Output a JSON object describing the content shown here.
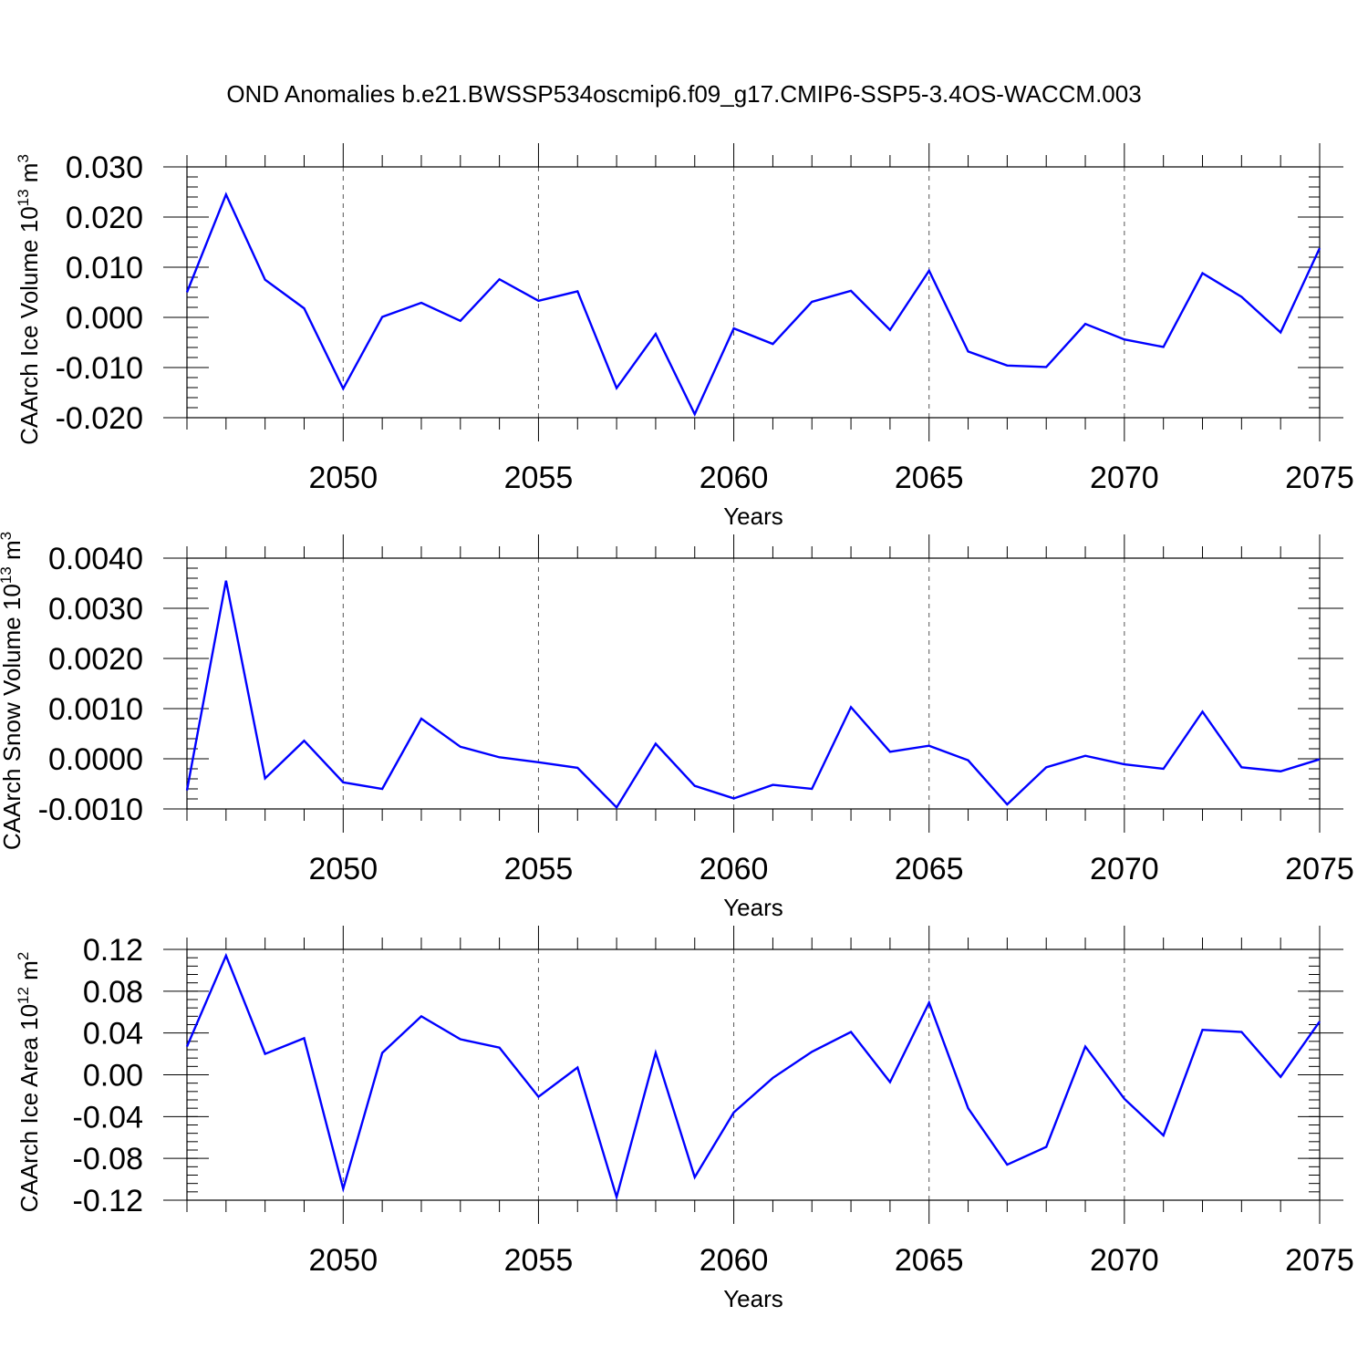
{
  "title": "OND Anomalies b.e21.BWSSP534oscmip6.f09_g17.CMIP6-SSP5-3.4OS-WACCM.003",
  "chart_data": [
    {
      "type": "line",
      "title": "",
      "xlabel": "Years",
      "ylabel": {
        "main": "CAArch Ice Volume 10",
        "exp": "13",
        "unit": " m",
        "unit_exp": "3"
      },
      "xlim": [
        2046,
        2075
      ],
      "ylim": [
        -0.02,
        0.03
      ],
      "x_ticks": [
        2050,
        2055,
        2060,
        2065,
        2070,
        2075
      ],
      "y_ticks": [
        -0.02,
        -0.01,
        0.0,
        0.01,
        0.02,
        0.03
      ],
      "y_tick_labels": [
        "-0.020",
        "-0.010",
        "0.000",
        "0.010",
        "0.020",
        "0.030"
      ],
      "y_minor_step": 0.002,
      "grid": "vertical dashed at major x ticks",
      "color": "#0000ff",
      "x": [
        2046,
        2047,
        2048,
        2049,
        2050,
        2051,
        2052,
        2053,
        2054,
        2055,
        2056,
        2057,
        2058,
        2059,
        2060,
        2061,
        2062,
        2063,
        2064,
        2065,
        2066,
        2067,
        2068,
        2069,
        2070,
        2071,
        2072,
        2073,
        2074,
        2075
      ],
      "values": [
        0.005,
        0.0245,
        0.0075,
        0.0018,
        -0.0142,
        0.0001,
        0.0029,
        -0.0007,
        0.0076,
        0.0033,
        0.0052,
        -0.0141,
        -0.0033,
        -0.0193,
        -0.0022,
        -0.0053,
        0.0031,
        0.0053,
        -0.0025,
        0.0093,
        -0.0068,
        -0.0096,
        -0.0099,
        -0.0013,
        -0.0044,
        -0.0059,
        0.0088,
        0.0041,
        -0.003,
        0.0138
      ]
    },
    {
      "type": "line",
      "title": "",
      "xlabel": "Years",
      "ylabel": {
        "main": "CAArch Snow Volume 10",
        "exp": "13",
        "unit": " m",
        "unit_exp": "3"
      },
      "xlim": [
        2046,
        2075
      ],
      "ylim": [
        -0.001,
        0.004
      ],
      "x_ticks": [
        2050,
        2055,
        2060,
        2065,
        2070,
        2075
      ],
      "y_ticks": [
        -0.001,
        0.0,
        0.001,
        0.002,
        0.003,
        0.004
      ],
      "y_tick_labels": [
        "-0.0010",
        "0.0000",
        "0.0010",
        "0.0020",
        "0.0030",
        "0.0040"
      ],
      "y_minor_step": 0.0002,
      "grid": "vertical dashed at major x ticks",
      "color": "#0000ff",
      "x": [
        2046,
        2047,
        2048,
        2049,
        2050,
        2051,
        2052,
        2053,
        2054,
        2055,
        2056,
        2057,
        2058,
        2059,
        2060,
        2061,
        2062,
        2063,
        2064,
        2065,
        2066,
        2067,
        2068,
        2069,
        2070,
        2071,
        2072,
        2073,
        2074,
        2075
      ],
      "values": [
        -0.00063,
        0.00355,
        -0.00039,
        0.00036,
        -0.00047,
        -0.0006,
        0.0008,
        0.00024,
        3e-05,
        -7e-05,
        -0.00018,
        -0.00097,
        0.0003,
        -0.00054,
        -0.00079,
        -0.00052,
        -0.0006,
        0.00103,
        0.00014,
        0.00026,
        -3e-05,
        -0.00091,
        -0.00017,
        6e-05,
        -0.00011,
        -0.0002,
        0.00094,
        -0.00017,
        -0.00025,
        -1e-05
      ]
    },
    {
      "type": "line",
      "title": "",
      "xlabel": "Years",
      "ylabel": {
        "main": "CAArch Ice Area 10",
        "exp": "12",
        "unit": " m",
        "unit_exp": "2"
      },
      "xlim": [
        2046,
        2075
      ],
      "ylim": [
        -0.12,
        0.12
      ],
      "x_ticks": [
        2050,
        2055,
        2060,
        2065,
        2070,
        2075
      ],
      "y_ticks": [
        -0.12,
        -0.08,
        -0.04,
        0.0,
        0.04,
        0.08,
        0.12
      ],
      "y_tick_labels": [
        "-0.12",
        "-0.08",
        "-0.04",
        "0.00",
        "0.04",
        "0.08",
        "0.12"
      ],
      "y_minor_step": 0.008,
      "grid": "vertical dashed at major x ticks",
      "color": "#0000ff",
      "x": [
        2046,
        2047,
        2048,
        2049,
        2050,
        2051,
        2052,
        2053,
        2054,
        2055,
        2056,
        2057,
        2058,
        2059,
        2060,
        2061,
        2062,
        2063,
        2064,
        2065,
        2066,
        2067,
        2068,
        2069,
        2070,
        2071,
        2072,
        2073,
        2074,
        2075
      ],
      "values": [
        0.027,
        0.114,
        0.02,
        0.035,
        -0.109,
        0.021,
        0.056,
        0.034,
        0.026,
        -0.021,
        0.007,
        -0.117,
        0.021,
        -0.098,
        -0.036,
        -0.003,
        0.022,
        0.041,
        -0.007,
        0.069,
        -0.032,
        -0.086,
        -0.069,
        0.027,
        -0.023,
        -0.058,
        0.043,
        0.041,
        -0.002,
        0.051
      ]
    }
  ]
}
